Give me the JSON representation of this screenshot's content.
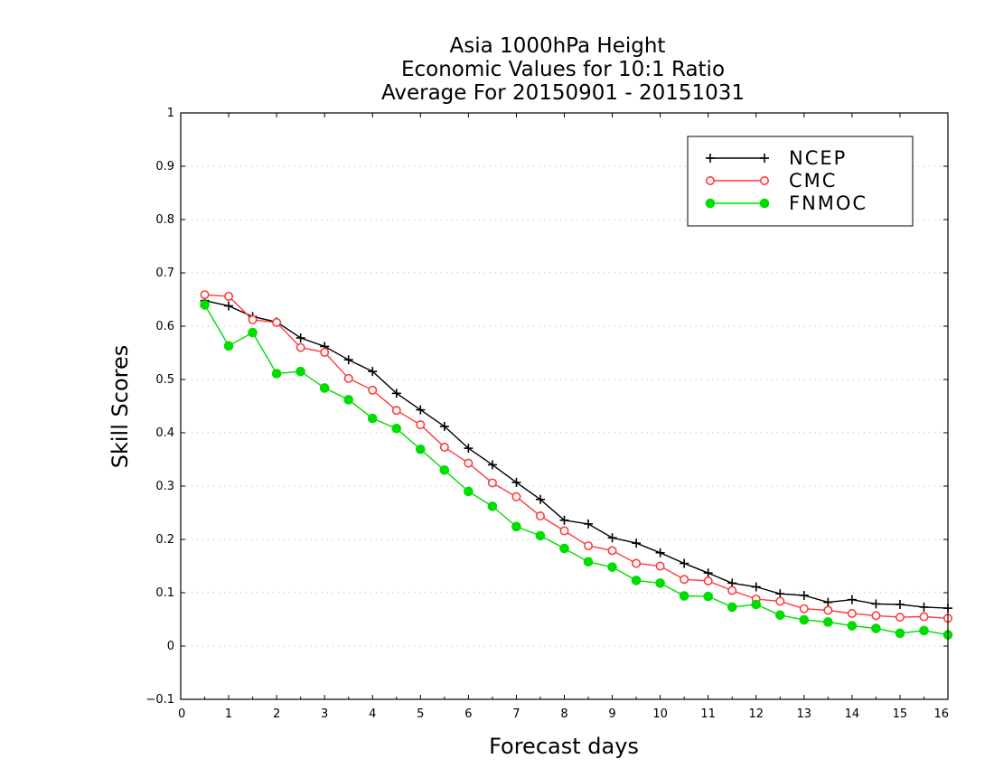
{
  "chart_data": {
    "type": "line",
    "title_lines": [
      "Asia 1000hPa Height",
      "Economic Values for 10:1 Ratio",
      "Average For 20150901 - 20151031"
    ],
    "xlabel": "Forecast days",
    "ylabel": "Skill Scores",
    "xlim": [
      0,
      16
    ],
    "ylim": [
      -0.1,
      1
    ],
    "x_ticks": [
      0,
      1,
      2,
      3,
      4,
      5,
      6,
      7,
      8,
      9,
      10,
      11,
      12,
      13,
      14,
      15,
      16
    ],
    "y_ticks": [
      -0.1,
      0,
      0.1,
      0.2,
      0.3,
      0.4,
      0.5,
      0.6,
      0.7,
      0.8,
      0.9,
      1
    ],
    "y_tick_labels": [
      "−0.1",
      "0",
      "0.1",
      "0.2",
      "0.3",
      "0.4",
      "0.5",
      "0.6",
      "0.7",
      "0.8",
      "0.9",
      "1"
    ],
    "grid": "horizontal dotted",
    "legend_position": "top-right",
    "x": [
      0.5,
      1,
      1.5,
      2,
      2.5,
      3,
      3.5,
      4,
      4.5,
      5,
      5.5,
      6,
      6.5,
      7,
      7.5,
      8,
      8.5,
      9,
      9.5,
      10,
      10.5,
      11,
      11.5,
      12,
      12.5,
      13,
      13.5,
      14,
      14.5,
      15,
      15.5,
      16
    ],
    "series": [
      {
        "name": "NCEP",
        "color": "#000000",
        "marker": "plus",
        "values": [
          0.648,
          0.638,
          0.618,
          0.608,
          0.578,
          0.562,
          0.537,
          0.515,
          0.474,
          0.443,
          0.412,
          0.371,
          0.34,
          0.307,
          0.275,
          0.236,
          0.229,
          0.203,
          0.193,
          0.175,
          0.155,
          0.137,
          0.118,
          0.111,
          0.098,
          0.095,
          0.082,
          0.087,
          0.079,
          0.078,
          0.073,
          0.071
        ]
      },
      {
        "name": "CMC",
        "color": "#ff3b3b",
        "marker": "open-circle",
        "values": [
          0.659,
          0.656,
          0.612,
          0.607,
          0.56,
          0.551,
          0.502,
          0.48,
          0.442,
          0.415,
          0.373,
          0.343,
          0.306,
          0.28,
          0.244,
          0.216,
          0.188,
          0.179,
          0.155,
          0.15,
          0.125,
          0.122,
          0.104,
          0.088,
          0.084,
          0.07,
          0.067,
          0.061,
          0.057,
          0.054,
          0.055,
          0.052
        ]
      },
      {
        "name": "FNMOC",
        "color": "#00dd00",
        "marker": "filled-circle",
        "values": [
          0.64,
          0.563,
          0.588,
          0.511,
          0.515,
          0.484,
          0.462,
          0.427,
          0.408,
          0.369,
          0.33,
          0.29,
          0.262,
          0.224,
          0.207,
          0.183,
          0.158,
          0.148,
          0.123,
          0.118,
          0.094,
          0.093,
          0.073,
          0.078,
          0.058,
          0.049,
          0.045,
          0.038,
          0.033,
          0.024,
          0.029,
          0.021
        ]
      }
    ]
  }
}
